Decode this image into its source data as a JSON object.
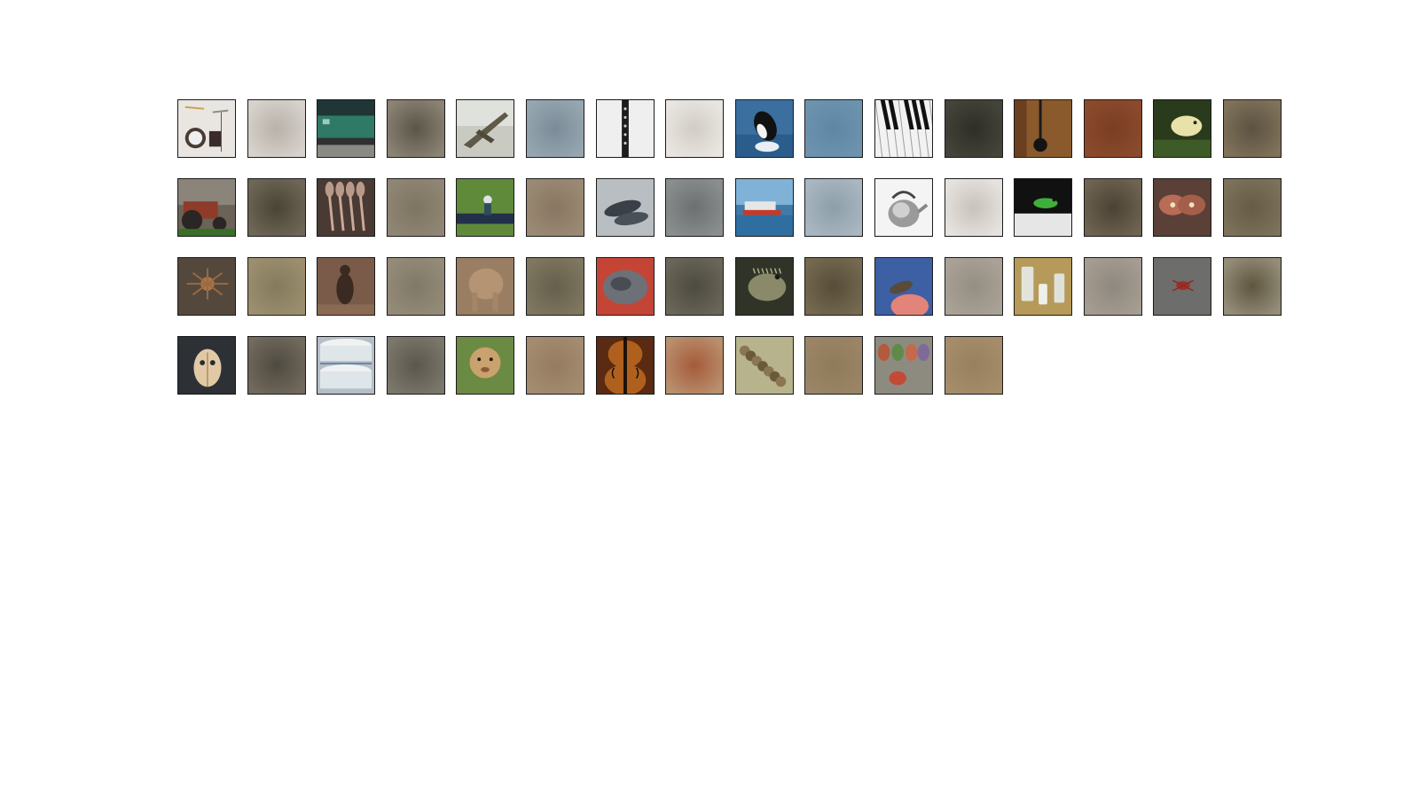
{
  "figure": {
    "rows": [
      [
        {
          "subject": "drum-kit",
          "kind": "photo",
          "bg": "#e9e6e2"
        },
        {
          "subject": "blurred-drum-kit",
          "kind": "blur",
          "bg": "#d7d2cc",
          "center": "#b9b1aa"
        },
        {
          "subject": "train",
          "kind": "photo",
          "bg": "#203535"
        },
        {
          "subject": "blurred-train",
          "kind": "blur",
          "bg": "#8b8373",
          "center": "#5a554a"
        },
        {
          "subject": "fighter-jet",
          "kind": "photo",
          "bg": "#c9cbc2"
        },
        {
          "subject": "blurred-fighter-jet",
          "kind": "blur",
          "bg": "#96a6b1",
          "center": "#7b8c98"
        },
        {
          "subject": "clarinet",
          "kind": "photo",
          "bg": "#efefef"
        },
        {
          "subject": "blurred-clarinet",
          "kind": "blur",
          "bg": "#e9e6e2",
          "center": "#d2ccc4"
        },
        {
          "subject": "orca",
          "kind": "photo",
          "bg": "#3a6f9f"
        },
        {
          "subject": "blurred-orca",
          "kind": "blur",
          "bg": "#6d93ae",
          "center": "#5f87a4"
        },
        {
          "subject": "piano-keys",
          "kind": "photo",
          "bg": "#f2f2f2"
        },
        {
          "subject": "blurred-piano-keys",
          "kind": "blur",
          "bg": "#45443a",
          "center": "#2e2e27"
        },
        {
          "subject": "dark-instrument",
          "kind": "photo",
          "bg": "#8a5a2c"
        },
        {
          "subject": "blurred-dark-instrument",
          "kind": "blur",
          "bg": "#8b4a2c",
          "center": "#7a3e24"
        },
        {
          "subject": "snake",
          "kind": "photo",
          "bg": "#2a3a1c"
        },
        {
          "subject": "blurred-snake",
          "kind": "blur",
          "bg": "#80725a",
          "center": "#5b5242"
        }
      ],
      [
        {
          "subject": "tractor",
          "kind": "photo",
          "bg": "#6b6357"
        },
        {
          "subject": "blurred-tractor",
          "kind": "blur",
          "bg": "#6e6757",
          "center": "#4a4436"
        },
        {
          "subject": "wooden-spoons",
          "kind": "photo",
          "bg": "#4a3a34"
        },
        {
          "subject": "blurred-wooden-spoons",
          "kind": "blur",
          "bg": "#908674",
          "center": "#7d7462"
        },
        {
          "subject": "golfer",
          "kind": "photo",
          "bg": "#5e8a3a"
        },
        {
          "subject": "blurred-golfer",
          "kind": "blur",
          "bg": "#9a8a74",
          "center": "#8a7662"
        },
        {
          "subject": "dolphins",
          "kind": "photo",
          "bg": "#b8bec2"
        },
        {
          "subject": "blurred-dolphins",
          "kind": "blur",
          "bg": "#8a8e8e",
          "center": "#6c7070"
        },
        {
          "subject": "ship",
          "kind": "photo",
          "bg": "#3f7aa8"
        },
        {
          "subject": "blurred-ship",
          "kind": "blur",
          "bg": "#a8b7c2",
          "center": "#8e9ea9"
        },
        {
          "subject": "kettle",
          "kind": "photo",
          "bg": "#f4f4f4"
        },
        {
          "subject": "blurred-kettle",
          "kind": "blur",
          "bg": "#e6e3df",
          "center": "#c8c2bb"
        },
        {
          "subject": "frog",
          "kind": "photo",
          "bg": "#111111"
        },
        {
          "subject": "blurred-frog",
          "kind": "blur",
          "bg": "#6e6450",
          "center": "#4a4234"
        },
        {
          "subject": "moth",
          "kind": "photo",
          "bg": "#5a4036"
        },
        {
          "subject": "blurred-moth",
          "kind": "blur",
          "bg": "#7c715a",
          "center": "#665c47"
        }
      ],
      [
        {
          "subject": "spider",
          "kind": "photo",
          "bg": "#54483d"
        },
        {
          "subject": "blurred-spider",
          "kind": "blur",
          "bg": "#9b8f6f",
          "center": "#857a5d"
        },
        {
          "subject": "kangaroo",
          "kind": "photo",
          "bg": "#7a5b4a"
        },
        {
          "subject": "blurred-kangaroo",
          "kind": "blur",
          "bg": "#948b78",
          "center": "#817968"
        },
        {
          "subject": "elephant",
          "kind": "photo",
          "bg": "#9a7e63"
        },
        {
          "subject": "blurred-elephant",
          "kind": "blur",
          "bg": "#7f7760",
          "center": "#655f4c"
        },
        {
          "subject": "platypus",
          "kind": "photo",
          "bg": "#c44536"
        },
        {
          "subject": "blurred-platypus",
          "kind": "blur",
          "bg": "#6a6658",
          "center": "#4d4a40"
        },
        {
          "subject": "iguana",
          "kind": "photo",
          "bg": "#303428"
        },
        {
          "subject": "blurred-iguana",
          "kind": "blur",
          "bg": "#75694f",
          "center": "#564d3a"
        },
        {
          "subject": "lizard-hand",
          "kind": "photo",
          "bg": "#3d5fa3"
        },
        {
          "subject": "blurred-lizard-hand",
          "kind": "blur",
          "bg": "#aaa296",
          "center": "#958e82"
        },
        {
          "subject": "jars",
          "kind": "photo",
          "bg": "#b69a5a"
        },
        {
          "subject": "blurred-jars",
          "kind": "blur",
          "bg": "#a59d92",
          "center": "#8f887e"
        },
        {
          "subject": "crab-on-gravel",
          "kind": "photo",
          "bg": "#6d6d6b"
        },
        {
          "subject": "blurred-crab",
          "kind": "blur",
          "bg": "#948d7a",
          "center": "#5e563e"
        }
      ],
      [
        {
          "subject": "beetle",
          "kind": "photo",
          "bg": "#2d3136"
        },
        {
          "subject": "blurred-beetle",
          "kind": "blur",
          "bg": "#716a5d",
          "center": "#4f4a40"
        },
        {
          "subject": "bowls",
          "kind": "photo",
          "bg": "#b4bec8"
        },
        {
          "subject": "blurred-bowls",
          "kind": "blur",
          "bg": "#7c776b",
          "center": "#5b574d"
        },
        {
          "subject": "lion-cub",
          "kind": "photo",
          "bg": "#6b8a44"
        },
        {
          "subject": "blurred-lion-cub",
          "kind": "blur",
          "bg": "#a48c70",
          "center": "#957c60"
        },
        {
          "subject": "violin",
          "kind": "photo",
          "bg": "#5a2a12"
        },
        {
          "subject": "blurred-violin",
          "kind": "blur",
          "bg": "#b9906e",
          "center": "#a55b3a"
        },
        {
          "subject": "caterpillar",
          "kind": "photo",
          "bg": "#b7b38c"
        },
        {
          "subject": "blurred-caterpillar",
          "kind": "blur",
          "bg": "#9b8566",
          "center": "#8f7a5a"
        },
        {
          "subject": "painted-glasses",
          "kind": "photo",
          "bg": "#8d8b7f"
        },
        {
          "subject": "blurred-painted-glasses",
          "kind": "blur",
          "bg": "#a68d6a",
          "center": "#97805f"
        }
      ]
    ]
  }
}
